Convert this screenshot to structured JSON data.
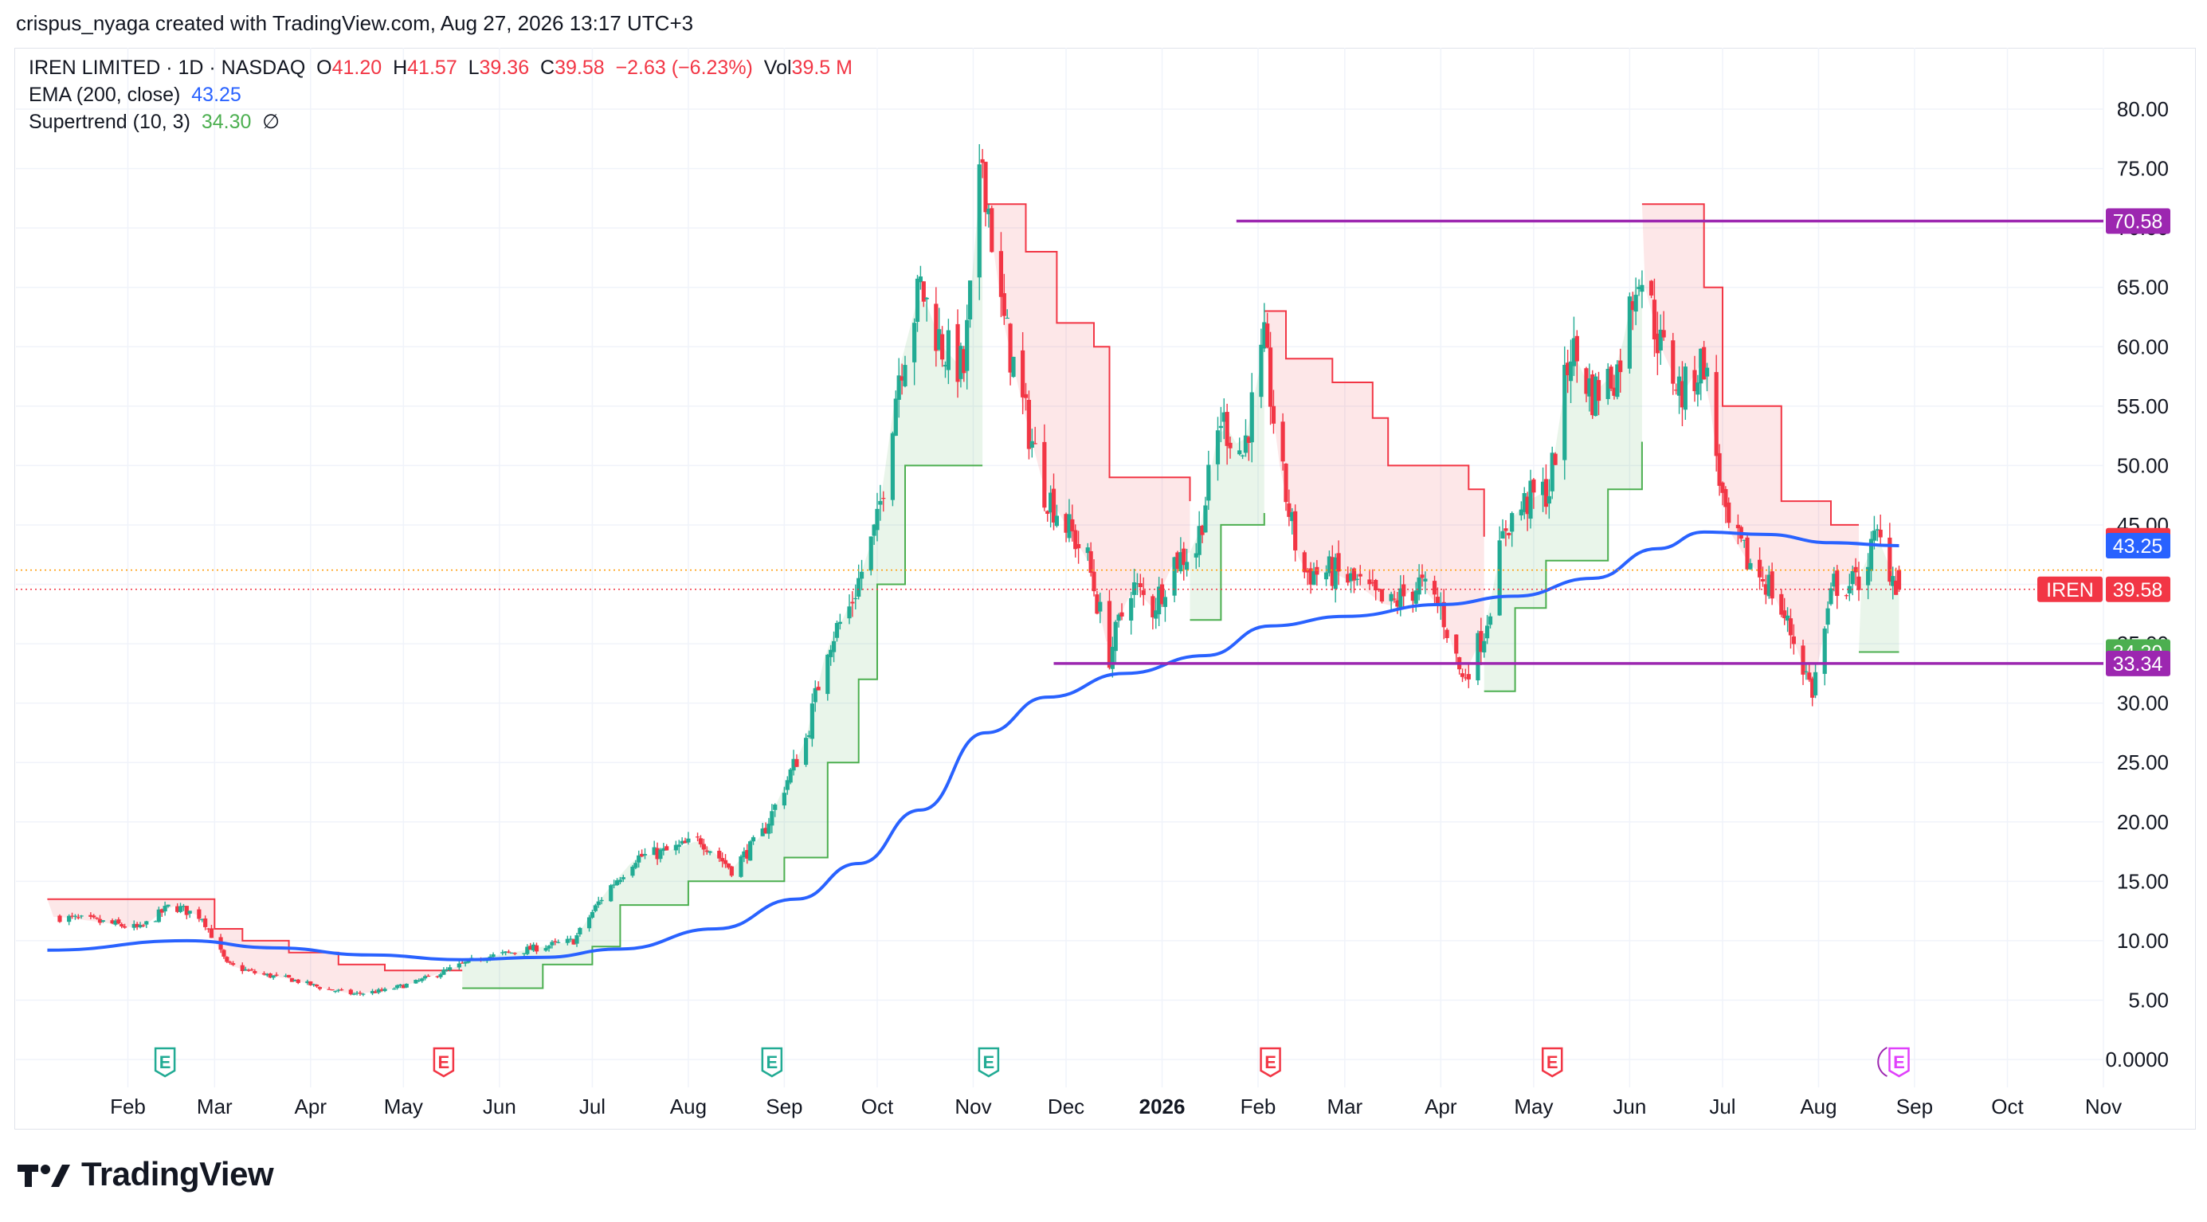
{
  "header": {
    "credit": "crispus_nyaga created with TradingView.com, Aug 27, 2026 13:17 UTC+3"
  },
  "legend": {
    "symbol": "IREN LIMITED · 1D · NASDAQ",
    "o_label": "O",
    "o_value": "41.20",
    "h_label": "H",
    "h_value": "41.57",
    "l_label": "L",
    "l_value": "39.36",
    "c_label": "C",
    "c_value": "39.58",
    "change": "−2.63 (−6.23%)",
    "vol_label": "Vol",
    "vol_value": "39.5 M",
    "ema_label": "EMA (200, close)",
    "ema_value": "43.25",
    "st_label": "Supertrend (10, 3)",
    "st_value": "34.30",
    "st_icon": "∅"
  },
  "footer": {
    "brand": "TradingView"
  },
  "colors": {
    "up": "#22ab94",
    "down": "#f23645",
    "ema": "#2962ff",
    "st_up": "#4caf50",
    "st_down": "#f23645",
    "level": "#9c27b0",
    "grid": "#f0f3fa"
  },
  "chart_data": {
    "type": "candlestick",
    "symbol": "IREN",
    "ylim": [
      0,
      80
    ],
    "y_ticks": [
      "80.00",
      "75.00",
      "70.00",
      "65.00",
      "60.00",
      "55.00",
      "50.00",
      "45.00",
      "40.00",
      "35.00",
      "30.00",
      "25.00",
      "20.00",
      "15.00",
      "10.00",
      "5.00",
      "0.0000"
    ],
    "x_ticks": [
      "Feb",
      "Mar",
      "Apr",
      "May",
      "Jun",
      "Jul",
      "Aug",
      "Sep",
      "Oct",
      "Nov",
      "Dec",
      "2026",
      "Feb",
      "Mar",
      "Apr",
      "May",
      "Jun",
      "Jul",
      "Aug",
      "Sep",
      "Oct",
      "Nov"
    ],
    "price_anchors": [
      [
        "2025-01-10",
        12
      ],
      [
        "2025-01-25",
        11.5
      ],
      [
        "2025-02-05",
        11
      ],
      [
        "2025-02-15",
        13
      ],
      [
        "2025-02-25",
        12
      ],
      [
        "2025-03-05",
        8
      ],
      [
        "2025-03-15",
        7.2
      ],
      [
        "2025-03-25",
        6.8
      ],
      [
        "2025-04-05",
        6
      ],
      [
        "2025-04-15",
        5.5
      ],
      [
        "2025-04-25",
        5.8
      ],
      [
        "2025-05-05",
        6.5
      ],
      [
        "2025-05-15",
        7.5
      ],
      [
        "2025-05-25",
        8.5
      ],
      [
        "2025-06-05",
        9
      ],
      [
        "2025-06-15",
        9.5
      ],
      [
        "2025-06-25",
        10
      ],
      [
        "2025-07-05",
        14
      ],
      [
        "2025-07-15",
        17
      ],
      [
        "2025-07-25",
        17.5
      ],
      [
        "2025-08-05",
        18.5
      ],
      [
        "2025-08-15",
        16
      ],
      [
        "2025-08-25",
        19
      ],
      [
        "2025-09-01",
        23
      ],
      [
        "2025-09-08",
        27
      ],
      [
        "2025-09-15",
        35
      ],
      [
        "2025-09-22",
        38
      ],
      [
        "2025-10-01",
        45
      ],
      [
        "2025-10-08",
        58
      ],
      [
        "2025-10-15",
        65
      ],
      [
        "2025-10-22",
        60
      ],
      [
        "2025-10-29",
        58
      ],
      [
        "2025-11-04",
        76
      ],
      [
        "2025-11-10",
        63
      ],
      [
        "2025-11-17",
        55
      ],
      [
        "2025-11-24",
        48
      ],
      [
        "2025-12-01",
        45
      ],
      [
        "2025-12-08",
        42
      ],
      [
        "2025-12-15",
        34
      ],
      [
        "2025-12-22",
        40
      ],
      [
        "2025-12-29",
        38
      ],
      [
        "2026-01-05",
        42
      ],
      [
        "2026-01-12",
        43
      ],
      [
        "2026-01-20",
        54
      ],
      [
        "2026-01-27",
        51
      ],
      [
        "2026-02-03",
        60
      ],
      [
        "2026-02-08",
        50
      ],
      [
        "2026-02-15",
        41
      ],
      [
        "2026-02-25",
        41
      ],
      [
        "2026-03-05",
        40
      ],
      [
        "2026-03-15",
        38
      ],
      [
        "2026-03-25",
        40
      ],
      [
        "2026-04-01",
        38
      ],
      [
        "2026-04-08",
        32
      ],
      [
        "2026-04-15",
        36
      ],
      [
        "2026-04-22",
        45
      ],
      [
        "2026-04-29",
        47
      ],
      [
        "2026-05-06",
        48
      ],
      [
        "2026-05-13",
        60
      ],
      [
        "2026-05-20",
        56
      ],
      [
        "2026-05-28",
        58
      ],
      [
        "2026-06-04",
        67
      ],
      [
        "2026-06-11",
        60
      ],
      [
        "2026-06-18",
        56
      ],
      [
        "2026-06-25",
        59
      ],
      [
        "2026-07-02",
        45
      ],
      [
        "2026-07-09",
        42
      ],
      [
        "2026-07-16",
        40
      ],
      [
        "2026-07-23",
        36
      ],
      [
        "2026-07-30",
        31
      ],
      [
        "2026-08-06",
        40
      ],
      [
        "2026-08-13",
        40
      ],
      [
        "2026-08-20",
        44
      ],
      [
        "2026-08-27",
        39.58
      ]
    ],
    "last_ohlc": {
      "open": 41.2,
      "high": 41.57,
      "low": 39.36,
      "close": 39.58
    },
    "ema_200": [
      [
        "2025-01-06",
        9.2
      ],
      [
        "2025-02-20",
        10
      ],
      [
        "2025-03-20",
        9.4
      ],
      [
        "2025-04-20",
        8.8
      ],
      [
        "2025-05-20",
        8.4
      ],
      [
        "2025-06-15",
        8.6
      ],
      [
        "2025-07-10",
        9.3
      ],
      [
        "2025-08-10",
        11
      ],
      [
        "2025-09-05",
        13.5
      ],
      [
        "2025-09-25",
        16.5
      ],
      [
        "2025-10-15",
        21
      ],
      [
        "2025-11-05",
        27.5
      ],
      [
        "2025-11-25",
        30.5
      ],
      [
        "2025-12-20",
        32.5
      ],
      [
        "2026-01-15",
        34
      ],
      [
        "2026-02-05",
        36.5
      ],
      [
        "2026-03-01",
        37.3
      ],
      [
        "2026-04-01",
        38.3
      ],
      [
        "2026-04-25",
        39
      ],
      [
        "2026-05-20",
        40.5
      ],
      [
        "2026-06-10",
        43
      ],
      [
        "2026-06-25",
        44.4
      ],
      [
        "2026-07-15",
        44.2
      ],
      [
        "2026-08-05",
        43.5
      ],
      [
        "2026-08-27",
        43.25
      ]
    ],
    "supertrend_down": [
      [
        [
          "2025-01-06",
          13.5
        ],
        [
          "2025-02-20",
          13.5
        ],
        [
          "2025-03-01",
          11
        ],
        [
          "2025-03-10",
          10
        ],
        [
          "2025-03-25",
          9
        ],
        [
          "2025-04-10",
          8
        ],
        [
          "2025-04-25",
          7.5
        ],
        [
          "2025-05-20",
          7.5
        ]
      ],
      [
        [
          "2025-11-05",
          72
        ],
        [
          "2025-11-18",
          68
        ],
        [
          "2025-11-28",
          62
        ],
        [
          "2025-12-10",
          60
        ],
        [
          "2025-12-15",
          49
        ],
        [
          "2025-12-31",
          49
        ],
        [
          "2026-01-10",
          47
        ]
      ],
      [
        [
          "2026-02-03",
          63
        ],
        [
          "2026-02-10",
          59
        ],
        [
          "2026-02-25",
          57
        ],
        [
          "2026-03-10",
          54
        ],
        [
          "2026-03-15",
          50
        ],
        [
          "2026-04-10",
          48
        ],
        [
          "2026-04-15",
          44
        ]
      ],
      [
        [
          "2026-06-05",
          72
        ],
        [
          "2026-06-15",
          72
        ],
        [
          "2026-06-25",
          65
        ],
        [
          "2026-07-01",
          55
        ],
        [
          "2026-07-10",
          55
        ],
        [
          "2026-07-20",
          47
        ],
        [
          "2026-08-05",
          45
        ],
        [
          "2026-08-14",
          45
        ]
      ]
    ],
    "supertrend_up": [
      [
        [
          "2025-05-20",
          6
        ],
        [
          "2025-06-15",
          8
        ],
        [
          "2025-07-01",
          9.5
        ],
        [
          "2025-07-10",
          13
        ],
        [
          "2025-08-01",
          15
        ],
        [
          "2025-08-20",
          15
        ],
        [
          "2025-09-01",
          17
        ],
        [
          "2025-09-15",
          25
        ],
        [
          "2025-09-25",
          32
        ],
        [
          "2025-10-01",
          40
        ],
        [
          "2025-10-10",
          50
        ],
        [
          "2025-11-04",
          50
        ]
      ],
      [
        [
          "2026-01-10",
          37
        ],
        [
          "2026-01-20",
          45
        ],
        [
          "2026-02-03",
          46
        ]
      ],
      [
        [
          "2026-04-15",
          31
        ],
        [
          "2026-04-25",
          38
        ],
        [
          "2026-05-05",
          42
        ],
        [
          "2026-05-25",
          48
        ],
        [
          "2026-06-05",
          52
        ]
      ],
      [
        [
          "2026-08-14",
          34.3
        ],
        [
          "2026-08-27",
          34.3
        ]
      ]
    ],
    "levels": [
      {
        "value": 70.58,
        "label": "70.58",
        "from": "2026-01-25"
      },
      {
        "value": 33.34,
        "label": "33.34",
        "from": "2025-11-27"
      }
    ],
    "price_tags": [
      {
        "value": 43.67,
        "label": "43.67"
      },
      {
        "value": 43.25,
        "label": "43.25"
      },
      {
        "value": 39.58,
        "label": "39.58",
        "symbol": "IREN"
      },
      {
        "value": 34.3,
        "label": "34.30"
      }
    ],
    "earnings_markers": [
      {
        "date": "2025-02-13",
        "label": "E",
        "type": "up"
      },
      {
        "date": "2025-05-14",
        "label": "E",
        "type": "down"
      },
      {
        "date": "2025-08-28",
        "label": "E",
        "type": "up"
      },
      {
        "date": "2025-11-06",
        "label": "E",
        "type": "up"
      },
      {
        "date": "2026-02-05",
        "label": "E",
        "type": "down"
      },
      {
        "date": "2026-05-07",
        "label": "E",
        "type": "down"
      },
      {
        "date": "2026-08-27",
        "label": "E",
        "type": "next"
      }
    ],
    "grid": true,
    "legend_position": "top-left"
  }
}
